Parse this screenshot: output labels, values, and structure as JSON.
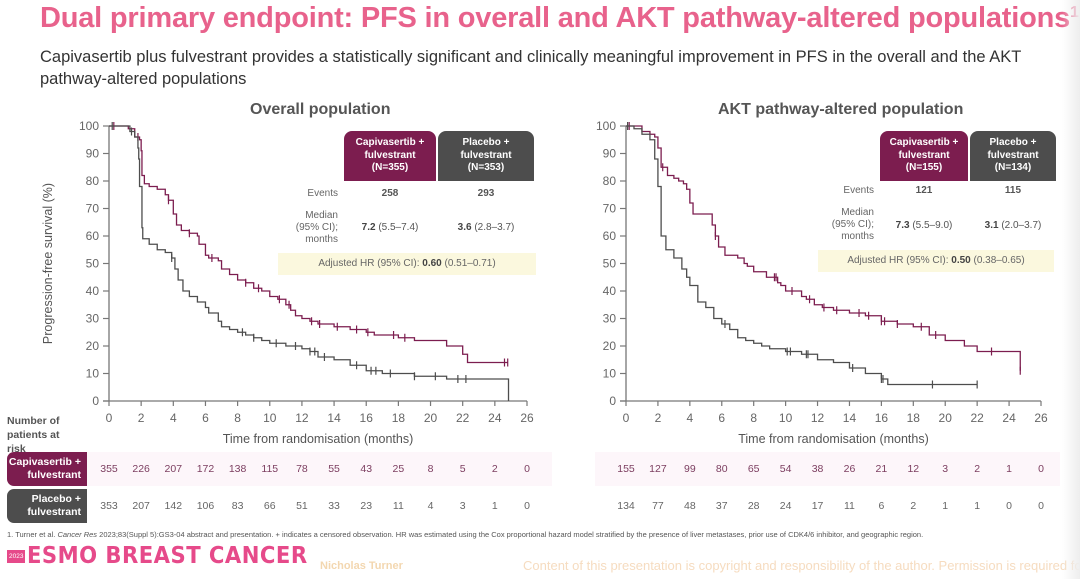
{
  "slide": {
    "title": "Dual primary endpoint: PFS in overall and AKT pathway-altered populations",
    "title_superscript": "1",
    "subtitle": "Capivasertib plus fulvestrant provides a statistically significant and clinically meaningful improvement in PFS in the overall and the AKT pathway-altered populations",
    "risk_table_title": "Number of patients at risk",
    "footnote_prefix": "1. Turner et al.",
    "footnote_journal": "Cancer Res",
    "footnote_rest": "2023;83(Suppl 5):GS3-04 abstract and presentation. + indicates a censored observation. HR was estimated using the Cox proportional hazard model stratified by the presence of liver metastases, prior use of CDK4/6 inhibitor, and geographic region.",
    "logo_year": "2023",
    "logo_text": "ESMO BREAST CANCER",
    "presenter": "Nicholas Turner",
    "copyright": "Content of this presentation is copyright and responsibility of the author. Permission is required for re-use."
  },
  "colors": {
    "title_pink": "#e8628c",
    "capivasertib": "#7c1d4f",
    "placebo": "#4d4d4d",
    "hr_background": "#fbf8de"
  },
  "arms": {
    "capi_label_line1": "Capivasertib +",
    "capi_label_line2": "fulvestrant",
    "plac_label_line1": "Placebo +",
    "plac_label_line2": "fulvestrant"
  },
  "chart_data": [
    {
      "type": "line",
      "title": "Overall population",
      "xlabel": "Time from randomisation (months)",
      "ylabel": "Progression-free survival (%)",
      "xlim": [
        0,
        26
      ],
      "ylim": [
        0,
        100
      ],
      "xticks": [
        "0",
        "2",
        "4",
        "6",
        "8",
        "10",
        "12",
        "14",
        "16",
        "18",
        "20",
        "22",
        "24",
        "26"
      ],
      "yticks": [
        "0",
        "10",
        "20",
        "30",
        "40",
        "50",
        "60",
        "70",
        "80",
        "90",
        "100"
      ],
      "table": {
        "capi_n": "(N=355)",
        "plac_n": "(N=353)",
        "events_label": "Events",
        "capi_events": "258",
        "plac_events": "293",
        "median_label_1": "Median",
        "median_label_2": "(95% CI);",
        "median_label_3": "months",
        "capi_median": "7.2",
        "capi_median_ci": "(5.5–7.4)",
        "plac_median": "3.6",
        "plac_median_ci": "(2.8–3.7)",
        "hr_label": "Adjusted HR (95% CI):",
        "hr_value": "0.60",
        "hr_ci": "(0.51–0.71)"
      },
      "series": [
        {
          "name": "Capivasertib + fulvestrant",
          "x": [
            0,
            0.6,
            1.2,
            1.6,
            1.9,
            2.0,
            2.05,
            2.2,
            2.5,
            3.0,
            3.5,
            3.7,
            4.0,
            4.2,
            4.5,
            5.0,
            5.5,
            5.6,
            6.0,
            6.2,
            6.8,
            7.0,
            7.5,
            8.0,
            8.5,
            9.0,
            9.5,
            10.0,
            10.5,
            11.0,
            11.3,
            11.6,
            12.0,
            12.5,
            13.0,
            14.0,
            15.0,
            16.0,
            16.5,
            18.0,
            19.0,
            20.0,
            21.0,
            21.5,
            22.0,
            22.3,
            24.8
          ],
          "y": [
            100,
            100,
            99,
            96,
            95,
            91,
            82,
            79,
            78,
            77,
            75,
            73,
            68,
            64,
            62,
            61,
            60,
            57,
            53,
            52,
            51,
            48,
            46,
            44,
            43,
            41,
            40,
            38,
            37,
            35,
            33,
            31,
            30,
            29,
            28,
            27,
            26,
            25,
            24,
            23,
            22,
            22,
            20,
            20,
            17,
            14,
            14
          ],
          "censored": [
            0.3,
            1.8,
            3.7,
            5.0,
            6.4,
            8.5,
            9.3,
            10.6,
            11.2,
            12.6,
            13.1,
            14.2,
            15.4,
            16.1,
            17.7,
            18.4,
            24.6,
            24.8
          ]
        },
        {
          "name": "Placebo + fulvestrant",
          "x": [
            0,
            0.7,
            1.3,
            1.6,
            1.8,
            1.85,
            1.9,
            2.05,
            2.1,
            2.5,
            3.0,
            3.5,
            3.9,
            4.1,
            4.3,
            4.6,
            5.0,
            5.5,
            6.0,
            6.2,
            6.8,
            7.0,
            7.5,
            8.0,
            8.5,
            9.0,
            9.5,
            10.0,
            11.0,
            12.0,
            12.5,
            13.0,
            14.0,
            15.0,
            16.0,
            17.0,
            18.0,
            19.0,
            20.0,
            21.0,
            22.0,
            24.8,
            24.85
          ],
          "y": [
            100,
            100,
            98,
            96,
            92,
            88,
            78,
            63,
            59,
            57,
            55,
            54,
            52,
            48,
            44,
            40,
            38,
            36,
            34,
            32,
            29,
            27,
            26,
            25,
            24,
            23,
            22,
            21,
            20,
            19,
            18,
            16,
            15,
            13,
            11,
            10,
            10,
            9,
            9,
            8,
            8,
            8,
            0
          ],
          "censored": [
            0.2,
            1.4,
            3.9,
            8.3,
            9.0,
            10.4,
            11.6,
            12.5,
            12.8,
            13.4,
            15.4,
            16.3,
            16.6,
            17.5,
            19.0,
            20.3,
            21.7,
            22.2
          ]
        }
      ],
      "risk_table": {
        "times": [
          0,
          2,
          4,
          6,
          8,
          10,
          12,
          14,
          16,
          18,
          20,
          22,
          24,
          26
        ],
        "capi": [
          "355",
          "226",
          "207",
          "172",
          "138",
          "115",
          "78",
          "55",
          "43",
          "25",
          "8",
          "5",
          "2",
          "0"
        ],
        "plac": [
          "353",
          "207",
          "142",
          "106",
          "83",
          "66",
          "51",
          "33",
          "23",
          "11",
          "4",
          "3",
          "1",
          "0"
        ]
      }
    },
    {
      "type": "line",
      "title": "AKT pathway-altered population",
      "xlabel": "Time from randomisation (months)",
      "ylabel": "",
      "xlim": [
        0,
        26
      ],
      "ylim": [
        0,
        100
      ],
      "xticks": [
        "0",
        "2",
        "4",
        "6",
        "8",
        "10",
        "12",
        "14",
        "16",
        "18",
        "20",
        "22",
        "24",
        "26"
      ],
      "yticks": [
        "0",
        "10",
        "20",
        "30",
        "40",
        "50",
        "60",
        "70",
        "80",
        "90",
        "100"
      ],
      "table": {
        "capi_n": "(N=155)",
        "plac_n": "(N=134)",
        "events_label": "Events",
        "capi_events": "121",
        "plac_events": "115",
        "median_label_1": "Median",
        "median_label_2": "(95% CI);",
        "median_label_3": "months",
        "capi_median": "7.3",
        "capi_median_ci": "(5.5–9.0)",
        "plac_median": "3.1",
        "plac_median_ci": "(2.0–3.7)",
        "hr_label": "Adjusted HR (95% CI):",
        "hr_value": "0.50",
        "hr_ci": "(0.38–0.65)"
      },
      "series": [
        {
          "name": "Capivasertib + fulvestrant",
          "x": [
            0,
            0.6,
            1.0,
            1.5,
            1.8,
            2.0,
            2.2,
            2.6,
            3.0,
            3.3,
            3.6,
            3.8,
            4.0,
            4.2,
            5.4,
            5.6,
            5.8,
            6.2,
            7.0,
            7.4,
            7.6,
            8.0,
            8.8,
            9.5,
            9.7,
            10.0,
            11.0,
            11.3,
            11.8,
            12.3,
            13.0,
            14.0,
            15.0,
            16.0,
            17.0,
            18.0,
            19.0,
            20.0,
            21.2,
            22.0,
            24.7
          ],
          "y": [
            100,
            100,
            98,
            97,
            96,
            92,
            85,
            82,
            81,
            80,
            79,
            77,
            72,
            68,
            64,
            60,
            56,
            53,
            52,
            50,
            49,
            47,
            45,
            43,
            42,
            40,
            38,
            37,
            35,
            34,
            33,
            32,
            31,
            29,
            28,
            27,
            24,
            22,
            20,
            18,
            11
          ],
          "censored": [
            0.2,
            2.3,
            5.6,
            9.3,
            9.4,
            10.4,
            11.5,
            12.4,
            13.2,
            14.6,
            15.2,
            16.0,
            16.2,
            17.0,
            18.5,
            19.4,
            22.9,
            24.7
          ]
        },
        {
          "name": "Placebo + fulvestrant",
          "x": [
            0,
            0.5,
            1.0,
            1.5,
            1.8,
            2.0,
            2.2,
            2.5,
            3.0,
            3.5,
            3.8,
            4.0,
            4.5,
            5.0,
            5.5,
            6.0,
            6.5,
            7.0,
            7.5,
            8.0,
            8.5,
            9.0,
            10.0,
            11.0,
            12.0,
            13.0,
            14.0,
            15.0,
            16.0,
            16.4,
            19.2,
            20.0,
            22.0
          ],
          "y": [
            100,
            99,
            97,
            95,
            88,
            78,
            60,
            55,
            52,
            48,
            45,
            42,
            36,
            34,
            30,
            28,
            26,
            23,
            22,
            21,
            20,
            19,
            18,
            17,
            15,
            14,
            12,
            10,
            8,
            6,
            6,
            6,
            6
          ],
          "censored": [
            0.1,
            6.2,
            10.1,
            10.3,
            11.3,
            11.4,
            14.2,
            16.0,
            16.1,
            19.2,
            22.0
          ]
        }
      ],
      "risk_table": {
        "times": [
          0,
          2,
          4,
          6,
          8,
          10,
          12,
          14,
          16,
          18,
          20,
          22,
          24,
          26
        ],
        "capi": [
          "155",
          "127",
          "99",
          "80",
          "65",
          "54",
          "38",
          "26",
          "21",
          "12",
          "3",
          "2",
          "1",
          "0"
        ],
        "plac": [
          "134",
          "77",
          "48",
          "37",
          "28",
          "24",
          "17",
          "11",
          "6",
          "2",
          "1",
          "1",
          "0",
          "0"
        ]
      }
    }
  ]
}
